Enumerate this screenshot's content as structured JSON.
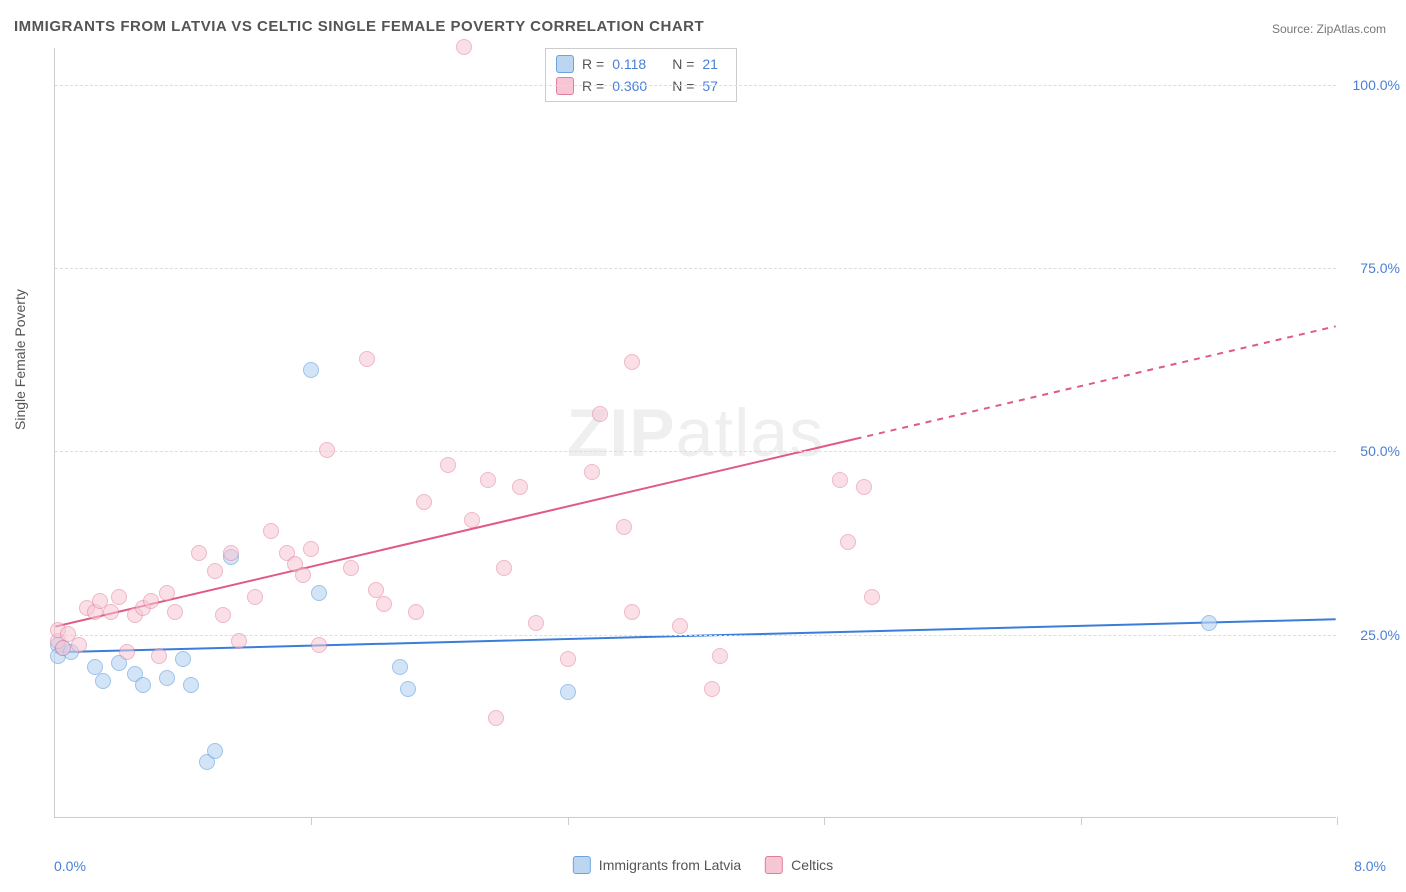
{
  "title": "IMMIGRANTS FROM LATVIA VS CELTIC SINGLE FEMALE POVERTY CORRELATION CHART",
  "source": "Source: ZipAtlas.com",
  "watermark_bold": "ZIP",
  "watermark_light": "atlas",
  "yaxis_title": "Single Female Poverty",
  "chart": {
    "type": "scatter",
    "xlim": [
      0,
      8
    ],
    "ylim": [
      0,
      105
    ],
    "xtick_positions": [
      1.6,
      3.2,
      4.8,
      6.4,
      8.0
    ],
    "yticks": [
      25,
      50,
      75,
      100
    ],
    "ytick_labels": [
      "25.0%",
      "50.0%",
      "75.0%",
      "100.0%"
    ],
    "xlabel_min": "0.0%",
    "xlabel_max": "8.0%",
    "background_color": "#ffffff",
    "grid_color": "#dddddd",
    "axis_color": "#cccccc",
    "point_radius": 8,
    "series": [
      {
        "name": "Immigrants from Latvia",
        "fill": "#bcd6f2",
        "stroke": "#6aa4e0",
        "fill_opacity": 0.65,
        "r": 0.118,
        "n": 21,
        "trend": {
          "y_at_x0": 22.5,
          "y_at_xmax": 27.0,
          "solid_until_x": 8.0,
          "color": "#3b7dd8",
          "width": 2
        },
        "points": [
          [
            0.02,
            23.5
          ],
          [
            0.02,
            22.0
          ],
          [
            0.05,
            23.0
          ],
          [
            0.1,
            22.5
          ],
          [
            0.25,
            20.5
          ],
          [
            0.3,
            18.5
          ],
          [
            0.4,
            21.0
          ],
          [
            0.5,
            19.5
          ],
          [
            0.55,
            18.0
          ],
          [
            0.7,
            19.0
          ],
          [
            0.8,
            21.5
          ],
          [
            0.85,
            18.0
          ],
          [
            0.95,
            7.5
          ],
          [
            1.0,
            9.0
          ],
          [
            1.1,
            35.5
          ],
          [
            1.6,
            61.0
          ],
          [
            1.65,
            30.5
          ],
          [
            2.15,
            20.5
          ],
          [
            2.2,
            17.5
          ],
          [
            3.2,
            17.0
          ],
          [
            7.2,
            26.5
          ]
        ]
      },
      {
        "name": "Celtics",
        "fill": "#f6c6d4",
        "stroke": "#e07f9c",
        "fill_opacity": 0.55,
        "r": 0.36,
        "n": 57,
        "trend": {
          "y_at_x0": 26.0,
          "y_at_xmax": 67.0,
          "solid_until_x": 5.0,
          "color": "#e05a85",
          "width": 2
        },
        "points": [
          [
            0.02,
            24.0
          ],
          [
            0.02,
            25.5
          ],
          [
            0.05,
            23.0
          ],
          [
            0.08,
            25.0
          ],
          [
            0.15,
            23.5
          ],
          [
            0.2,
            28.5
          ],
          [
            0.25,
            28.0
          ],
          [
            0.28,
            29.5
          ],
          [
            0.35,
            28.0
          ],
          [
            0.4,
            30.0
          ],
          [
            0.45,
            22.5
          ],
          [
            0.5,
            27.5
          ],
          [
            0.55,
            28.5
          ],
          [
            0.6,
            29.5
          ],
          [
            0.65,
            22.0
          ],
          [
            0.7,
            30.5
          ],
          [
            0.75,
            28.0
          ],
          [
            0.9,
            36.0
          ],
          [
            1.0,
            33.5
          ],
          [
            1.05,
            27.5
          ],
          [
            1.1,
            36.0
          ],
          [
            1.15,
            24.0
          ],
          [
            1.25,
            30.0
          ],
          [
            1.35,
            39.0
          ],
          [
            1.45,
            36.0
          ],
          [
            1.5,
            34.5
          ],
          [
            1.55,
            33.0
          ],
          [
            1.6,
            36.5
          ],
          [
            1.65,
            23.5
          ],
          [
            1.7,
            50.0
          ],
          [
            1.85,
            34.0
          ],
          [
            1.95,
            62.5
          ],
          [
            2.0,
            31.0
          ],
          [
            2.05,
            29.0
          ],
          [
            2.25,
            28.0
          ],
          [
            2.3,
            43.0
          ],
          [
            2.45,
            48.0
          ],
          [
            2.55,
            105.0
          ],
          [
            2.6,
            40.5
          ],
          [
            2.7,
            46.0
          ],
          [
            2.75,
            13.5
          ],
          [
            2.8,
            34.0
          ],
          [
            2.9,
            45.0
          ],
          [
            3.0,
            26.5
          ],
          [
            3.2,
            21.5
          ],
          [
            3.35,
            47.0
          ],
          [
            3.4,
            55.0
          ],
          [
            3.55,
            39.5
          ],
          [
            3.6,
            62.0
          ],
          [
            3.6,
            28.0
          ],
          [
            3.9,
            26.0
          ],
          [
            4.1,
            17.5
          ],
          [
            4.15,
            22.0
          ],
          [
            4.9,
            46.0
          ],
          [
            4.95,
            37.5
          ],
          [
            5.05,
            45.0
          ],
          [
            5.1,
            30.0
          ]
        ]
      }
    ]
  },
  "legend_top": {
    "r_label": "R =",
    "n_label": "N =",
    "rows": [
      {
        "swatch_fill": "#bcd6f2",
        "swatch_stroke": "#6aa4e0",
        "r": "0.118",
        "n": "21"
      },
      {
        "swatch_fill": "#f6c6d4",
        "swatch_stroke": "#e07f9c",
        "r": "0.360",
        "n": "57"
      }
    ]
  },
  "legend_bottom": {
    "items": [
      {
        "swatch_fill": "#bcd6f2",
        "swatch_stroke": "#6aa4e0",
        "label": "Immigrants from Latvia"
      },
      {
        "swatch_fill": "#f6c6d4",
        "swatch_stroke": "#e07f9c",
        "label": "Celtics"
      }
    ]
  }
}
